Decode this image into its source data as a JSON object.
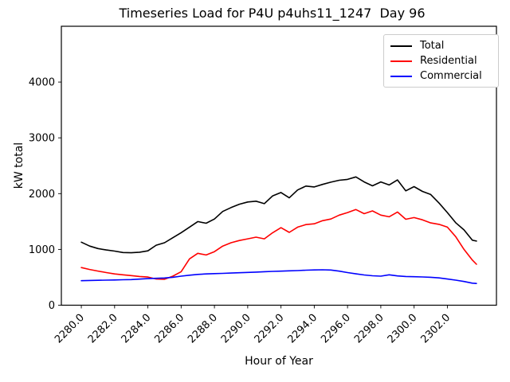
{
  "chart_data": {
    "type": "line",
    "title": "Timeseries Load for P4U p4uhs11_1247  Day 96",
    "xlabel": "Hour of Year",
    "ylabel": "kW total",
    "xlim": [
      2278.8,
      2304.95
    ],
    "ylim": [
      0,
      5000
    ],
    "grid": false,
    "legend_position": "upper right",
    "xticks": [
      2280,
      2282,
      2284,
      2286,
      2288,
      2290,
      2292,
      2294,
      2296,
      2298,
      2300,
      2302
    ],
    "xtick_labels": [
      "2280.0",
      "2282.0",
      "2284.0",
      "2286.0",
      "2288.0",
      "2290.0",
      "2292.0",
      "2294.0",
      "2296.0",
      "2298.0",
      "2300.0",
      "2302.0"
    ],
    "yticks": [
      0,
      1000,
      2000,
      3000,
      4000
    ],
    "ytick_labels": [
      "0",
      "1000",
      "2000",
      "3000",
      "4000"
    ],
    "x": [
      2280.0,
      2280.5,
      2281.0,
      2281.5,
      2282.0,
      2282.5,
      2283.0,
      2283.5,
      2284.0,
      2284.5,
      2285.0,
      2285.5,
      2286.0,
      2286.5,
      2287.0,
      2287.5,
      2288.0,
      2288.5,
      2289.0,
      2289.5,
      2290.0,
      2290.5,
      2291.0,
      2291.5,
      2292.0,
      2292.5,
      2293.0,
      2293.5,
      2294.0,
      2294.5,
      2295.0,
      2295.5,
      2296.0,
      2296.5,
      2297.0,
      2297.5,
      2298.0,
      2298.5,
      2299.0,
      2299.5,
      2300.0,
      2300.5,
      2301.0,
      2301.5,
      2302.0,
      2302.5,
      2303.0,
      2303.5,
      2303.75
    ],
    "series": [
      {
        "name": "Total",
        "color": "#000000",
        "values": [
          1130,
          1060,
          1015,
          990,
          970,
          945,
          940,
          950,
          975,
          1075,
          1120,
          1210,
          1300,
          1400,
          1500,
          1470,
          1545,
          1680,
          1750,
          1810,
          1850,
          1865,
          1820,
          1960,
          2020,
          1925,
          2065,
          2135,
          2120,
          2165,
          2205,
          2240,
          2255,
          2300,
          2210,
          2140,
          2210,
          2155,
          2245,
          2050,
          2125,
          2040,
          1985,
          1830,
          1660,
          1480,
          1350,
          1165,
          1150
        ]
      },
      {
        "name": "Residential",
        "color": "#ff0000",
        "values": [
          675,
          640,
          612,
          585,
          560,
          545,
          530,
          515,
          505,
          470,
          465,
          520,
          600,
          830,
          930,
          900,
          960,
          1060,
          1120,
          1160,
          1190,
          1220,
          1190,
          1300,
          1390,
          1305,
          1400,
          1445,
          1460,
          1515,
          1545,
          1615,
          1660,
          1715,
          1640,
          1690,
          1615,
          1585,
          1670,
          1540,
          1570,
          1530,
          1475,
          1450,
          1400,
          1230,
          1000,
          810,
          735
        ]
      },
      {
        "name": "Commercial",
        "color": "#0000ff",
        "values": [
          440,
          443,
          446,
          449,
          452,
          456,
          460,
          468,
          476,
          482,
          488,
          500,
          520,
          538,
          552,
          560,
          566,
          571,
          576,
          582,
          588,
          594,
          600,
          606,
          611,
          616,
          621,
          627,
          632,
          635,
          630,
          610,
          585,
          562,
          542,
          528,
          520,
          545,
          525,
          515,
          510,
          506,
          500,
          490,
          470,
          450,
          425,
          395,
          390
        ]
      }
    ]
  }
}
